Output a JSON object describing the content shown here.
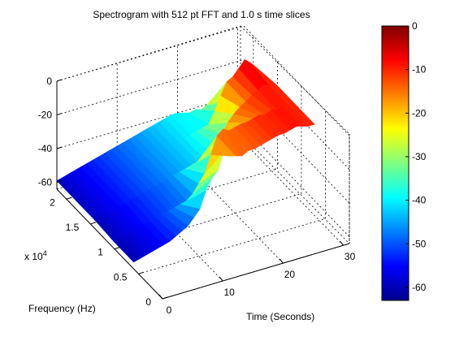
{
  "chart_data": {
    "type": "surface-3d",
    "title": "Spectrogram with 512 pt FFT and 1.0 s time slices",
    "xlabel": "Time (Seconds)",
    "ylabel": "Frequency (Hz)",
    "y_exponent_label": "x 10",
    "y_exponent_power": "4",
    "x_ticks": [
      0,
      10,
      20,
      30
    ],
    "y_ticks": [
      0,
      0.5,
      1,
      1.5,
      2
    ],
    "z_ticks": [
      0,
      -20,
      -40,
      -60
    ],
    "xlim": [
      0,
      31
    ],
    "ylim": [
      0,
      2.2
    ],
    "zlim": [
      -64,
      0
    ],
    "colorbar": {
      "ticks": [
        0,
        -10,
        -20,
        -30,
        -40,
        -50,
        -60
      ],
      "range": [
        -63,
        0
      ],
      "colormap": "jet"
    },
    "surface_rows": [
      {
        "freq": 2.2,
        "values": [
          -59,
          -58,
          -57,
          -56,
          -55,
          -54,
          -53,
          -52,
          -51,
          -50,
          -49,
          -48,
          -47,
          -46,
          -45,
          -44,
          -43,
          -42,
          -41,
          -40,
          -40,
          -41,
          -42,
          -41,
          -42,
          -40,
          -41,
          -40,
          -40,
          -40,
          -40
        ]
      },
      {
        "freq": 1.8,
        "values": [
          -59,
          -58,
          -57,
          -56,
          -55,
          -54,
          -53,
          -52,
          -51,
          -50,
          -49,
          -48,
          -47,
          -46,
          -45,
          -44,
          -43,
          -42,
          -41,
          -40,
          -39,
          -38,
          -37,
          -30,
          -22,
          -15,
          -13,
          -9,
          -5,
          -8,
          -12
        ]
      },
      {
        "freq": 1.4,
        "values": [
          -59,
          -58,
          -57,
          -56,
          -55,
          -54,
          -53,
          -52,
          -51,
          -50,
          -49,
          -48,
          -47,
          -46,
          -45,
          -44,
          -43,
          -42,
          -41,
          -38,
          -35,
          -30,
          -24,
          -20,
          -17,
          -15,
          -12,
          -10,
          -8,
          -10,
          -10
        ]
      },
      {
        "freq": 1.0,
        "values": [
          -60,
          -59,
          -58,
          -57,
          -56,
          -55,
          -54,
          -53,
          -52,
          -51,
          -50,
          -49,
          -48,
          -45,
          -40,
          -35,
          -25,
          -15,
          -12,
          -14,
          -13,
          -12,
          -12,
          -11,
          -10,
          -11,
          -9,
          -10,
          -9,
          -10,
          -10
        ]
      },
      {
        "freq": 0.6,
        "values": [
          -60,
          -59,
          -58,
          -57,
          -56,
          -55,
          -54,
          -52,
          -50,
          -48,
          -44,
          -40,
          -30,
          -24,
          -20,
          -10,
          -14,
          -15,
          -16,
          -14,
          -14,
          -13,
          -12,
          -11,
          -10,
          -10,
          -9,
          -8,
          -9,
          -10,
          -10
        ]
      }
    ]
  }
}
